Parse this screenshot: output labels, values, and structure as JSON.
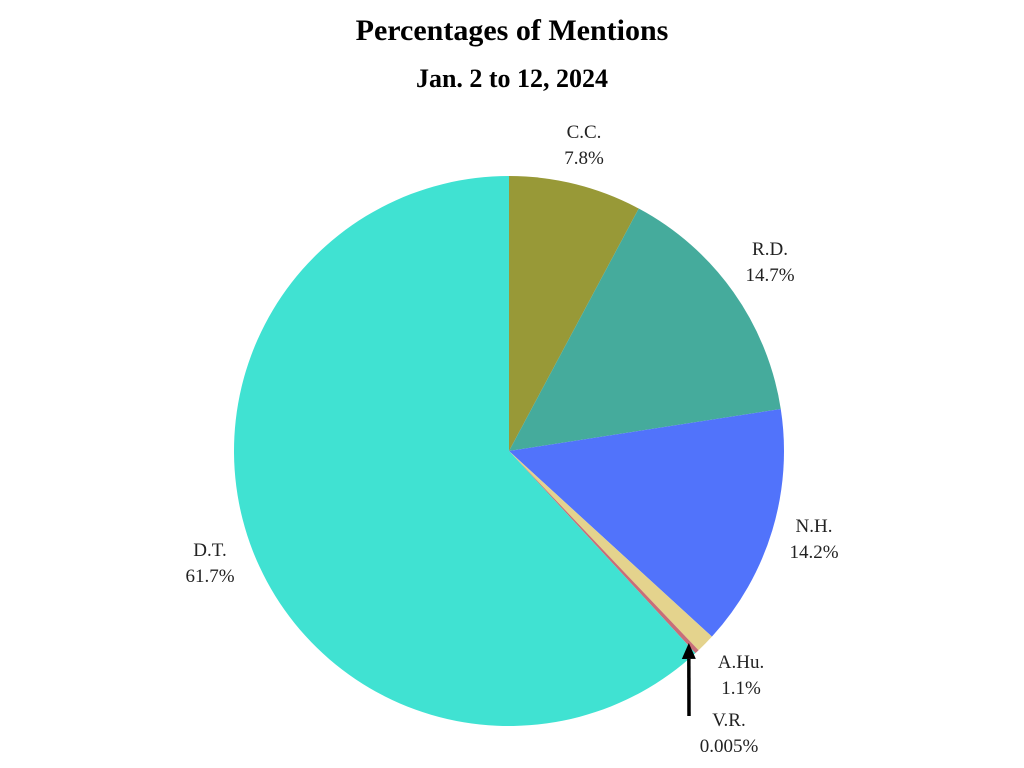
{
  "chart_data": {
    "type": "pie",
    "title": "Percentages of Mentions",
    "subtitle": "Jan. 2 to 12, 2024",
    "slices": [
      {
        "name": "C.C.",
        "value": 7.8,
        "label": "7.8%",
        "color": "#989937"
      },
      {
        "name": "R.D.",
        "value": 14.7,
        "label": "14.7%",
        "color": "#45ab9c"
      },
      {
        "name": "N.H.",
        "value": 14.2,
        "label": "14.2%",
        "color": "#5173fb"
      },
      {
        "name": "A.Hu.",
        "value": 1.1,
        "label": "1.1%",
        "color": "#e4d38d"
      },
      {
        "name": "V.R.",
        "value": 0.005,
        "label": "0.005%",
        "color": "#c86e78"
      },
      {
        "name": "D.T.",
        "value": 61.7,
        "label": "61.7%",
        "color": "#40e2d2"
      }
    ],
    "start_angle": "12 o'clock",
    "direction": "clockwise",
    "legend": "none",
    "annotations": [
      {
        "type": "arrow",
        "target": "V.R.",
        "color": "#000000"
      }
    ]
  }
}
